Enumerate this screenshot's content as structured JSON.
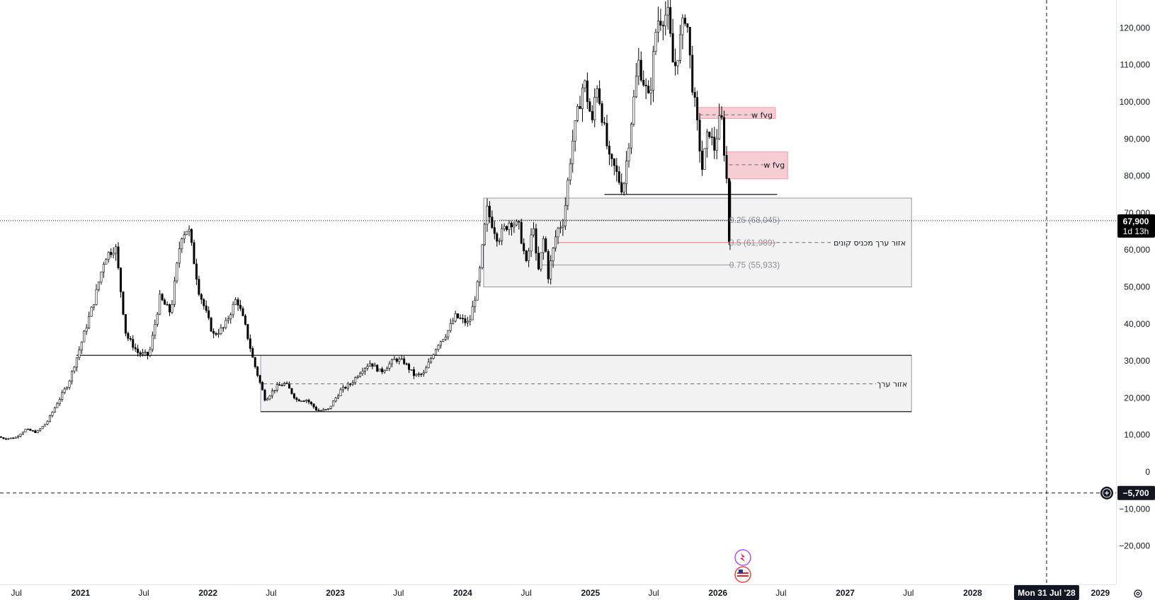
{
  "chart_data": {
    "type": "candlestick",
    "title": "",
    "xlabel": "",
    "ylabel": "",
    "ylim": [
      -30000,
      125000
    ],
    "y_ticks": [
      120000,
      110000,
      100000,
      90000,
      80000,
      70000,
      60000,
      50000,
      40000,
      30000,
      20000,
      10000,
      0,
      -10000,
      -20000,
      -30000
    ],
    "y_tick_labels": [
      "120,000",
      "110,000",
      "100,000",
      "90,000",
      "80,000",
      "70,000",
      "60,000",
      "50,000",
      "40,000",
      "30,000",
      "20,000",
      "10,000",
      "0",
      "−10,000",
      "−20,000",
      "−30,000"
    ],
    "x_ticks": [
      "Jul",
      "2021",
      "Jul",
      "2022",
      "Jul",
      "2023",
      "Jul",
      "2024",
      "Jul",
      "2025",
      "Jul",
      "2026",
      "Jul",
      "2027",
      "Jul",
      "2028",
      "2029"
    ],
    "x_tick_dates": [
      "2020-07-01",
      "2021-01-01",
      "2021-07-01",
      "2022-01-01",
      "2022-07-01",
      "2023-01-01",
      "2023-07-01",
      "2024-01-01",
      "2024-07-01",
      "2025-01-01",
      "2025-07-01",
      "2026-01-01",
      "2026-07-01",
      "2027-01-01",
      "2027-07-01",
      "2028-01-01",
      "2029-01-01"
    ],
    "xlim": [
      "2020-05-15",
      "2029-02-15"
    ],
    "price_path": [
      {
        "date": "2020-05-15",
        "price": 9500
      },
      {
        "date": "2020-06-01",
        "price": 9000
      },
      {
        "date": "2020-07-01",
        "price": 9200
      },
      {
        "date": "2020-08-01",
        "price": 11500
      },
      {
        "date": "2020-09-01",
        "price": 10700
      },
      {
        "date": "2020-10-01",
        "price": 13500
      },
      {
        "date": "2020-11-01",
        "price": 19000
      },
      {
        "date": "2020-12-01",
        "price": 24000
      },
      {
        "date": "2021-01-01",
        "price": 33000
      },
      {
        "date": "2021-02-15",
        "price": 47000
      },
      {
        "date": "2021-03-15",
        "price": 58000
      },
      {
        "date": "2021-04-15",
        "price": 61000
      },
      {
        "date": "2021-05-15",
        "price": 37000
      },
      {
        "date": "2021-06-20",
        "price": 32000
      },
      {
        "date": "2021-07-20",
        "price": 31500
      },
      {
        "date": "2021-08-20",
        "price": 47000
      },
      {
        "date": "2021-09-20",
        "price": 43000
      },
      {
        "date": "2021-10-20",
        "price": 64000
      },
      {
        "date": "2021-11-10",
        "price": 66000
      },
      {
        "date": "2021-12-10",
        "price": 49000
      },
      {
        "date": "2022-01-20",
        "price": 37000
      },
      {
        "date": "2022-02-20",
        "price": 39000
      },
      {
        "date": "2022-03-28",
        "price": 47000
      },
      {
        "date": "2022-04-20",
        "price": 40000
      },
      {
        "date": "2022-05-15",
        "price": 30000
      },
      {
        "date": "2022-06-18",
        "price": 19500
      },
      {
        "date": "2022-07-20",
        "price": 23000
      },
      {
        "date": "2022-08-15",
        "price": 24000
      },
      {
        "date": "2022-09-15",
        "price": 19500
      },
      {
        "date": "2022-10-15",
        "price": 19500
      },
      {
        "date": "2022-11-15",
        "price": 16500
      },
      {
        "date": "2022-12-15",
        "price": 16800
      },
      {
        "date": "2023-01-20",
        "price": 22000
      },
      {
        "date": "2023-02-20",
        "price": 24000
      },
      {
        "date": "2023-03-20",
        "price": 27500
      },
      {
        "date": "2023-04-15",
        "price": 29500
      },
      {
        "date": "2023-05-15",
        "price": 27000
      },
      {
        "date": "2023-06-25",
        "price": 30500
      },
      {
        "date": "2023-07-20",
        "price": 29800
      },
      {
        "date": "2023-08-20",
        "price": 26000
      },
      {
        "date": "2023-09-15",
        "price": 26500
      },
      {
        "date": "2023-10-25",
        "price": 34500
      },
      {
        "date": "2023-11-20",
        "price": 37500
      },
      {
        "date": "2023-12-15",
        "price": 42000
      },
      {
        "date": "2024-01-23",
        "price": 40000
      },
      {
        "date": "2024-02-20",
        "price": 52000
      },
      {
        "date": "2024-03-14",
        "price": 71000
      },
      {
        "date": "2024-04-15",
        "price": 63000
      },
      {
        "date": "2024-05-20",
        "price": 68000
      },
      {
        "date": "2024-06-15",
        "price": 66000
      },
      {
        "date": "2024-07-05",
        "price": 56000
      },
      {
        "date": "2024-07-28",
        "price": 68000
      },
      {
        "date": "2024-08-05",
        "price": 52000
      },
      {
        "date": "2024-08-25",
        "price": 64000
      },
      {
        "date": "2024-09-06",
        "price": 53000
      },
      {
        "date": "2024-09-30",
        "price": 65000
      },
      {
        "date": "2024-10-20",
        "price": 68000
      },
      {
        "date": "2024-11-12",
        "price": 88000
      },
      {
        "date": "2024-12-17",
        "price": 106000
      },
      {
        "date": "2025-01-10",
        "price": 94000
      },
      {
        "date": "2025-01-22",
        "price": 106000
      },
      {
        "date": "2025-02-28",
        "price": 84000
      },
      {
        "date": "2025-03-15",
        "price": 82000
      },
      {
        "date": "2025-04-08",
        "price": 76000
      },
      {
        "date": "2025-05-22",
        "price": 111000
      },
      {
        "date": "2025-06-22",
        "price": 100000
      },
      {
        "date": "2025-07-14",
        "price": 122000
      },
      {
        "date": "2025-08-14",
        "price": 124000
      },
      {
        "date": "2025-09-01",
        "price": 108000
      },
      {
        "date": "2025-10-06",
        "price": 125000
      },
      {
        "date": "2025-10-20",
        "price": 108000
      },
      {
        "date": "2025-11-21",
        "price": 82000
      },
      {
        "date": "2025-12-10",
        "price": 93000
      },
      {
        "date": "2025-12-25",
        "price": 87000
      },
      {
        "date": "2026-01-14",
        "price": 97000
      },
      {
        "date": "2026-01-31",
        "price": 78000
      },
      {
        "date": "2026-02-05",
        "price": 60000
      },
      {
        "date": "2026-02-08",
        "price": 67900
      }
    ],
    "last_price": {
      "label": "67,900",
      "countdown": "1d 13h",
      "value": 67900
    },
    "cursor": {
      "price_label": "−5,700",
      "value": -5700,
      "date_label": "Mon 31 Jul '28",
      "date": "2028-07-31"
    },
    "zones": [
      {
        "name": "value-zone-2024",
        "from": "2024-03-01",
        "to": "2027-07-10",
        "top": 74000,
        "bottom": 50000
      },
      {
        "name": "value-zone-2022",
        "from": "2022-06-01",
        "to": "2027-07-10",
        "top": 31500,
        "bottom": 16300
      }
    ],
    "fvg_boxes": [
      {
        "label": "w fvg",
        "from": "2025-11-01",
        "to": "2026-06-15",
        "top": 98500,
        "bottom": 95500,
        "mid": 96500
      },
      {
        "label": "w fvg",
        "from": "2026-01-25",
        "to": "2026-07-20",
        "top": 86500,
        "bottom": 79200,
        "mid": 83000
      }
    ],
    "fib_levels": [
      {
        "ratio_label": "0.25 (68,045)",
        "value": 68045,
        "from": "2024-04-15",
        "to": "2026-02-15",
        "color": "#5d606b"
      },
      {
        "ratio_label": "0.5 (61,989)",
        "value": 61989,
        "from": "2024-10-01",
        "to": "2026-02-15",
        "color": "#f23645"
      },
      {
        "ratio_label": "0.75 (55,933)",
        "value": 55933,
        "from": "2024-08-10",
        "to": "2026-02-15",
        "color": "#5d606b"
      }
    ],
    "support_lines": [
      {
        "value": 75000,
        "from": "2025-02-10",
        "to": "2026-06-20"
      },
      {
        "value": 31500,
        "from": "2020-12-20",
        "to": "2027-07-10"
      },
      {
        "value": 16300,
        "from": "2022-06-01",
        "to": "2027-07-10"
      }
    ],
    "annotations": [
      {
        "text": "אזור ערך מכניס קונים",
        "value": 61989
      },
      {
        "text": "אזור ערך",
        "value": 23800
      }
    ]
  }
}
